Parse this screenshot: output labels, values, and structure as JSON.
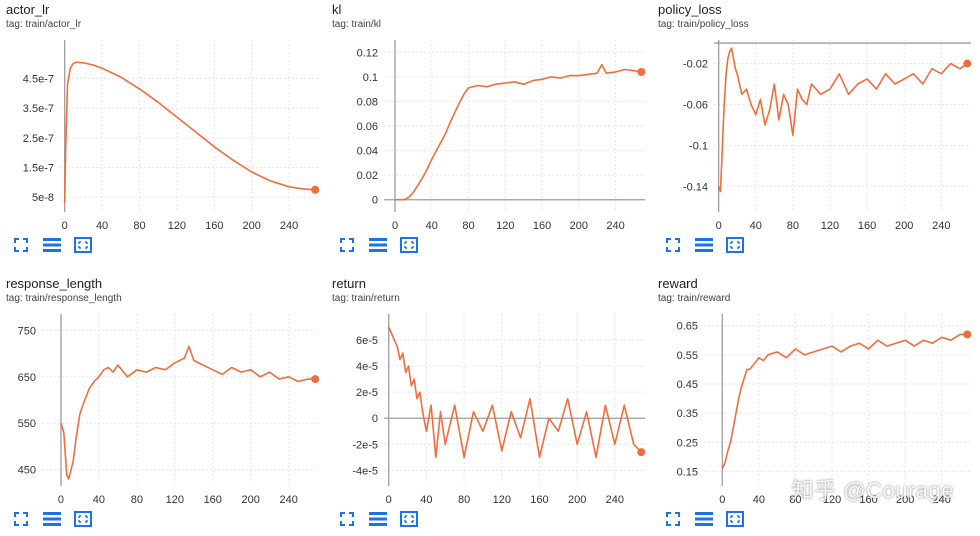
{
  "colors": {
    "series": "#f06d3c",
    "axis": "#9e9e9e",
    "grid": "#e6e6e6",
    "tick": "#333333",
    "tool": "#1a73e8"
  },
  "icons": [
    "expand-icon",
    "data-table-icon",
    "fit-domain-icon"
  ],
  "watermark": "知乎 @Courage",
  "chart_data": [
    {
      "id": "actor_lr",
      "type": "line",
      "title": "actor_lr",
      "tag": "tag: train/actor_lr",
      "xlim": [
        -5,
        272
      ],
      "ylim": [
        0,
        5.8e-07
      ],
      "xticks": [
        0,
        40,
        80,
        120,
        160,
        200,
        240
      ],
      "xtick_labels": [
        "0",
        "40",
        "80",
        "120",
        "160",
        "200",
        "240"
      ],
      "yticks": [
        5e-08,
        1.5e-07,
        2.5e-07,
        3.5e-07,
        4.5e-07
      ],
      "ytick_labels": [
        "5e-8",
        "1.5e-7",
        "2.5e-7",
        "3.5e-7",
        "4.5e-7"
      ],
      "grid": true,
      "series": [
        {
          "x": [
            0,
            1,
            3,
            6,
            9,
            12,
            20,
            30,
            40,
            60,
            80,
            100,
            120,
            140,
            160,
            180,
            200,
            220,
            240,
            255,
            268
          ],
          "y": [
            3e-08,
            2e-07,
            4.3e-07,
            4.85e-07,
            5e-07,
            5.05e-07,
            5.03e-07,
            4.96e-07,
            4.85e-07,
            4.55e-07,
            4.15e-07,
            3.7e-07,
            3.2e-07,
            2.7e-07,
            2.2e-07,
            1.75e-07,
            1.35e-07,
            1.05e-07,
            8.5e-08,
            7.8e-08,
            7.5e-08
          ],
          "end_marker": true
        }
      ]
    },
    {
      "id": "kl",
      "type": "line",
      "title": "kl",
      "tag": "tag: train/kl",
      "xlim": [
        -12,
        272
      ],
      "ylim": [
        -0.01,
        0.13
      ],
      "xticks": [
        0,
        40,
        80,
        120,
        160,
        200,
        240
      ],
      "xtick_labels": [
        "0",
        "40",
        "80",
        "120",
        "160",
        "200",
        "240"
      ],
      "yticks": [
        0,
        0.02,
        0.04,
        0.06,
        0.08,
        0.1,
        0.12
      ],
      "ytick_labels": [
        "0",
        "0.02",
        "0.04",
        "0.06",
        "0.08",
        "0.1",
        "0.12"
      ],
      "grid": true,
      "series": [
        {
          "x": [
            0,
            5,
            10,
            15,
            20,
            25,
            30,
            35,
            40,
            45,
            50,
            55,
            60,
            65,
            70,
            75,
            80,
            90,
            100,
            110,
            120,
            130,
            140,
            150,
            160,
            170,
            180,
            190,
            200,
            210,
            220,
            225,
            230,
            240,
            250,
            260,
            268
          ],
          "y": [
            0,
            0,
            0,
            0.002,
            0.006,
            0.012,
            0.018,
            0.025,
            0.033,
            0.04,
            0.047,
            0.054,
            0.063,
            0.071,
            0.079,
            0.086,
            0.091,
            0.093,
            0.092,
            0.094,
            0.095,
            0.096,
            0.094,
            0.097,
            0.098,
            0.1,
            0.099,
            0.101,
            0.101,
            0.102,
            0.103,
            0.11,
            0.103,
            0.104,
            0.106,
            0.105,
            0.104
          ],
          "end_marker": true
        }
      ]
    },
    {
      "id": "policy_loss",
      "type": "line",
      "title": "policy_loss",
      "tag": "tag: train/policy_loss",
      "xlim": [
        -5,
        272
      ],
      "ylim": [
        -0.165,
        0.003
      ],
      "xticks": [
        0,
        40,
        80,
        120,
        160,
        200,
        240
      ],
      "xtick_labels": [
        "0",
        "40",
        "80",
        "120",
        "160",
        "200",
        "240"
      ],
      "yticks": [
        -0.02,
        -0.06,
        -0.1,
        -0.14
      ],
      "ytick_labels": [
        "-0.02",
        "-0.06",
        "-0.1",
        "-0.14"
      ],
      "grid": true,
      "series": [
        {
          "x": [
            0,
            2,
            4,
            6,
            8,
            10,
            12,
            14,
            16,
            18,
            20,
            25,
            30,
            35,
            40,
            45,
            50,
            55,
            60,
            65,
            70,
            75,
            80,
            85,
            90,
            95,
            100,
            110,
            120,
            130,
            140,
            150,
            160,
            170,
            180,
            190,
            200,
            210,
            220,
            230,
            240,
            250,
            260,
            268
          ],
          "y": [
            -0.14,
            -0.145,
            -0.1,
            -0.06,
            -0.03,
            -0.015,
            -0.008,
            -0.005,
            -0.015,
            -0.025,
            -0.03,
            -0.05,
            -0.045,
            -0.06,
            -0.07,
            -0.055,
            -0.08,
            -0.065,
            -0.04,
            -0.075,
            -0.05,
            -0.06,
            -0.09,
            -0.045,
            -0.055,
            -0.06,
            -0.04,
            -0.05,
            -0.045,
            -0.03,
            -0.05,
            -0.04,
            -0.035,
            -0.045,
            -0.03,
            -0.04,
            -0.035,
            -0.03,
            -0.04,
            -0.025,
            -0.03,
            -0.02,
            -0.025,
            -0.02
          ],
          "end_marker": true
        }
      ]
    },
    {
      "id": "response_length",
      "type": "line",
      "title": "response_length",
      "tag": "tag: train/response_length",
      "xlim": [
        -20,
        272
      ],
      "ylim": [
        415,
        785
      ],
      "xticks": [
        0,
        40,
        80,
        120,
        160,
        200,
        240
      ],
      "xtick_labels": [
        "0",
        "40",
        "80",
        "120",
        "160",
        "200",
        "240"
      ],
      "yticks": [
        450,
        550,
        650,
        750
      ],
      "ytick_labels": [
        "450",
        "550",
        "650",
        "750"
      ],
      "grid": true,
      "series": [
        {
          "x": [
            0,
            3,
            6,
            8,
            10,
            13,
            16,
            20,
            25,
            30,
            35,
            40,
            45,
            50,
            55,
            60,
            70,
            80,
            90,
            100,
            110,
            120,
            130,
            135,
            140,
            150,
            160,
            170,
            180,
            190,
            200,
            210,
            220,
            230,
            240,
            250,
            260,
            268
          ],
          "y": [
            550,
            530,
            440,
            430,
            445,
            470,
            520,
            570,
            600,
            625,
            640,
            650,
            665,
            670,
            660,
            675,
            650,
            665,
            660,
            670,
            665,
            680,
            690,
            715,
            685,
            675,
            665,
            655,
            670,
            660,
            665,
            650,
            660,
            645,
            650,
            640,
            645,
            645
          ],
          "end_marker": true
        }
      ]
    },
    {
      "id": "return",
      "type": "line",
      "title": "return",
      "tag": "tag: train/return",
      "xlim": [
        -5,
        272
      ],
      "ylim": [
        -5.2e-05,
        8e-05
      ],
      "xticks": [
        0,
        40,
        80,
        120,
        160,
        200,
        240
      ],
      "xtick_labels": [
        "0",
        "40",
        "80",
        "120",
        "160",
        "200",
        "240"
      ],
      "yticks": [
        -4e-05,
        -2e-05,
        0,
        2e-05,
        4e-05,
        6e-05
      ],
      "ytick_labels": [
        "-4e-5",
        "-2e-5",
        "0",
        "2e-5",
        "4e-5",
        "6e-5"
      ],
      "grid": true,
      "series": [
        {
          "x": [
            0,
            3,
            6,
            9,
            12,
            15,
            18,
            21,
            24,
            27,
            30,
            33,
            36,
            40,
            45,
            50,
            55,
            60,
            70,
            80,
            90,
            100,
            110,
            120,
            130,
            140,
            150,
            160,
            170,
            180,
            190,
            200,
            210,
            220,
            230,
            240,
            250,
            260,
            268
          ],
          "y": [
            7e-05,
            6.5e-05,
            6e-05,
            5.5e-05,
            4.5e-05,
            5e-05,
            3.5e-05,
            4e-05,
            2.5e-05,
            3e-05,
            1.5e-05,
            2e-05,
            5e-06,
            -1e-05,
            1e-05,
            -3e-05,
            5e-06,
            -2e-05,
            1e-05,
            -3e-05,
            5e-06,
            -1e-05,
            1e-05,
            -2.5e-05,
            5e-06,
            -1.5e-05,
            1.5e-05,
            -3e-05,
            0,
            -1e-05,
            1.5e-05,
            -2e-05,
            5e-06,
            -3e-05,
            1e-05,
            -2e-05,
            1e-05,
            -2e-05,
            -2.6e-05
          ],
          "end_marker": true
        }
      ]
    },
    {
      "id": "reward",
      "type": "line",
      "title": "reward",
      "tag": "tag: train/reward",
      "xlim": [
        -20,
        272
      ],
      "ylim": [
        0.1,
        0.69
      ],
      "xticks": [
        0,
        40,
        80,
        120,
        160,
        200,
        240
      ],
      "xtick_labels": [
        "0",
        "40",
        "80",
        "120",
        "160",
        "200",
        "240"
      ],
      "yticks": [
        0.15,
        0.25,
        0.35,
        0.45,
        0.55,
        0.65
      ],
      "ytick_labels": [
        "0.15",
        "0.25",
        "0.35",
        "0.45",
        "0.55",
        "0.65"
      ],
      "grid": true,
      "series": [
        {
          "x": [
            0,
            3,
            6,
            9,
            12,
            15,
            18,
            21,
            24,
            27,
            30,
            35,
            40,
            45,
            50,
            60,
            70,
            80,
            90,
            100,
            110,
            120,
            130,
            140,
            150,
            160,
            170,
            180,
            190,
            200,
            210,
            220,
            230,
            240,
            250,
            260,
            268
          ],
          "y": [
            0.16,
            0.18,
            0.22,
            0.25,
            0.3,
            0.35,
            0.4,
            0.44,
            0.47,
            0.5,
            0.5,
            0.52,
            0.54,
            0.53,
            0.55,
            0.56,
            0.54,
            0.57,
            0.55,
            0.56,
            0.57,
            0.58,
            0.56,
            0.58,
            0.59,
            0.57,
            0.6,
            0.58,
            0.59,
            0.6,
            0.58,
            0.6,
            0.59,
            0.61,
            0.6,
            0.62,
            0.62
          ],
          "end_marker": true
        }
      ]
    }
  ]
}
